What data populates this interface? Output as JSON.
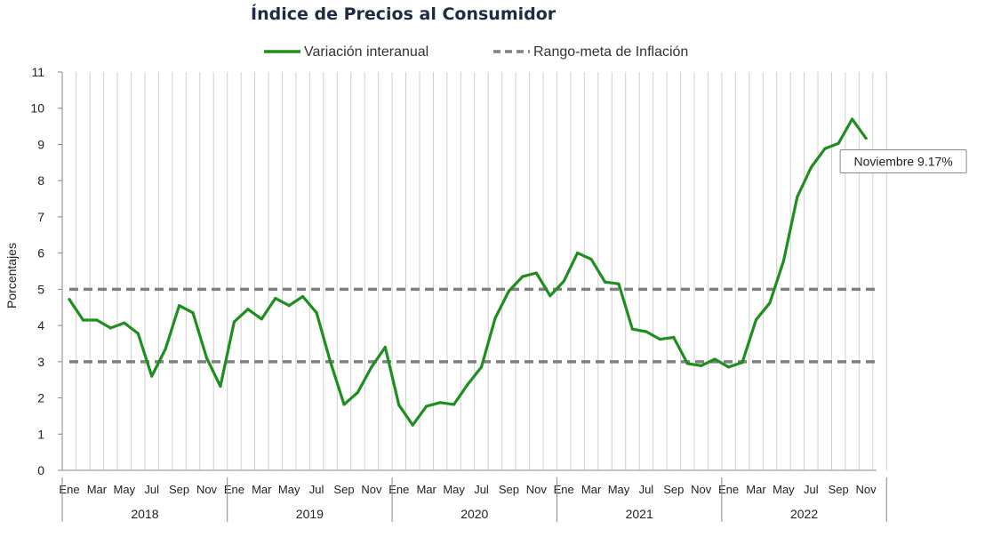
{
  "chart_data": {
    "type": "line",
    "title": "Índice de Precios al Consumidor",
    "ylabel": "Porcentajes",
    "ylim": [
      0,
      11
    ],
    "yticks": [
      0,
      1,
      2,
      3,
      4,
      5,
      6,
      7,
      8,
      9,
      10,
      11
    ],
    "grid": "vertical",
    "legend_position": "top",
    "years": [
      "2018",
      "2019",
      "2020",
      "2021",
      "2022"
    ],
    "month_tick_labels": [
      "Ene",
      "Mar",
      "May",
      "Jul",
      "Sep",
      "Nov"
    ],
    "x": [
      "2018-01",
      "2018-02",
      "2018-03",
      "2018-04",
      "2018-05",
      "2018-06",
      "2018-07",
      "2018-08",
      "2018-09",
      "2018-10",
      "2018-11",
      "2018-12",
      "2019-01",
      "2019-02",
      "2019-03",
      "2019-04",
      "2019-05",
      "2019-06",
      "2019-07",
      "2019-08",
      "2019-09",
      "2019-10",
      "2019-11",
      "2019-12",
      "2020-01",
      "2020-02",
      "2020-03",
      "2020-04",
      "2020-05",
      "2020-06",
      "2020-07",
      "2020-08",
      "2020-09",
      "2020-10",
      "2020-11",
      "2020-12",
      "2021-01",
      "2021-02",
      "2021-03",
      "2021-04",
      "2021-05",
      "2021-06",
      "2021-07",
      "2021-08",
      "2021-09",
      "2021-10",
      "2021-11",
      "2021-12",
      "2022-01",
      "2022-02",
      "2022-03",
      "2022-04",
      "2022-05",
      "2022-06",
      "2022-07",
      "2022-08",
      "2022-09",
      "2022-10",
      "2022-11"
    ],
    "series": [
      {
        "name": "Variación interanual",
        "color": "#1e8f1e",
        "style": "solid",
        "values": [
          4.72,
          4.15,
          4.15,
          3.93,
          4.07,
          3.78,
          2.6,
          3.35,
          4.55,
          4.35,
          3.1,
          2.32,
          4.1,
          4.45,
          4.18,
          4.75,
          4.55,
          4.8,
          4.35,
          3.0,
          1.82,
          2.15,
          2.85,
          3.4,
          1.8,
          1.25,
          1.77,
          1.87,
          1.82,
          2.37,
          2.85,
          4.2,
          4.95,
          5.35,
          5.45,
          4.82,
          5.22,
          6.0,
          5.83,
          5.2,
          5.15,
          3.9,
          3.83,
          3.62,
          3.67,
          2.95,
          2.89,
          3.07,
          2.85,
          2.98,
          4.16,
          4.62,
          5.78,
          7.55,
          8.36,
          8.88,
          9.03,
          9.7,
          9.17
        ]
      },
      {
        "name": "Rango-meta de Inflación",
        "color": "#808080",
        "style": "dashed",
        "values_upper": 5,
        "values_lower": 3
      }
    ],
    "annotations": [
      {
        "label": "Noviembre 9.17%",
        "x": "2022-11",
        "y": 9.17
      }
    ]
  }
}
